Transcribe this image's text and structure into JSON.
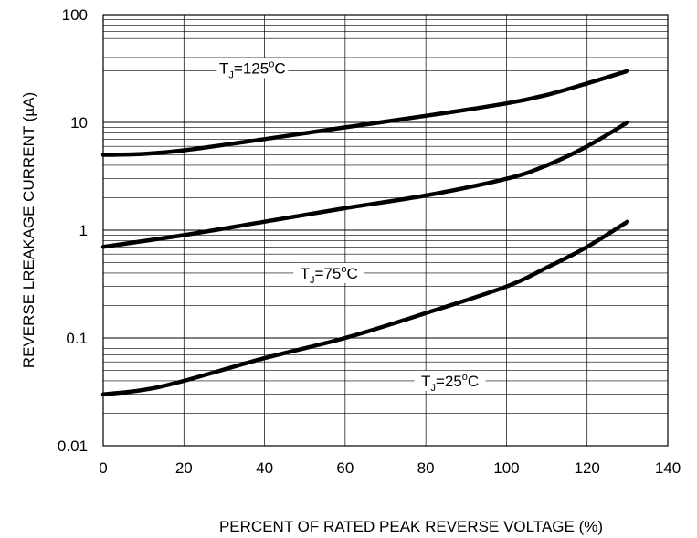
{
  "chart_data": {
    "type": "line",
    "title": "",
    "xlabel": "PERCENT OF RATED PEAK REVERSE VOLTAGE (%)",
    "ylabel": "REVERSE LREAKAGE CURRENT (µA)",
    "xlim": [
      0,
      140
    ],
    "ylim": [
      0.01,
      100
    ],
    "yscale": "log",
    "grid": true,
    "x_ticks": [
      "0",
      "20",
      "40",
      "60",
      "80",
      "100",
      "120",
      "140"
    ],
    "y_ticks": [
      "0.01",
      "0.1",
      "1",
      "10",
      "100"
    ],
    "series": [
      {
        "name": "T_J=125°C",
        "label": {
          "T": "T",
          "sub": "J",
          "eq": "=125",
          "sup": "o",
          "unit": "C"
        },
        "x": [
          0,
          10,
          20,
          40,
          60,
          80,
          100,
          110,
          120,
          130
        ],
        "y": [
          5,
          5.1,
          5.5,
          7,
          9,
          11.5,
          15,
          18,
          23,
          30
        ]
      },
      {
        "name": "T_J=75°C",
        "label": {
          "T": "T",
          "sub": "J",
          "eq": "=75",
          "sup": "o",
          "unit": "C"
        },
        "x": [
          0,
          20,
          40,
          60,
          80,
          100,
          110,
          120,
          130
        ],
        "y": [
          0.7,
          0.9,
          1.2,
          1.6,
          2.1,
          3,
          4,
          6,
          10
        ]
      },
      {
        "name": "T_J=25°C",
        "label": {
          "T": "T",
          "sub": "J",
          "eq": "=25",
          "sup": "o",
          "unit": "C"
        },
        "x": [
          0,
          10,
          20,
          40,
          60,
          80,
          100,
          110,
          120,
          130
        ],
        "y": [
          0.03,
          0.033,
          0.04,
          0.065,
          0.1,
          0.17,
          0.3,
          0.45,
          0.7,
          1.2
        ]
      }
    ]
  }
}
